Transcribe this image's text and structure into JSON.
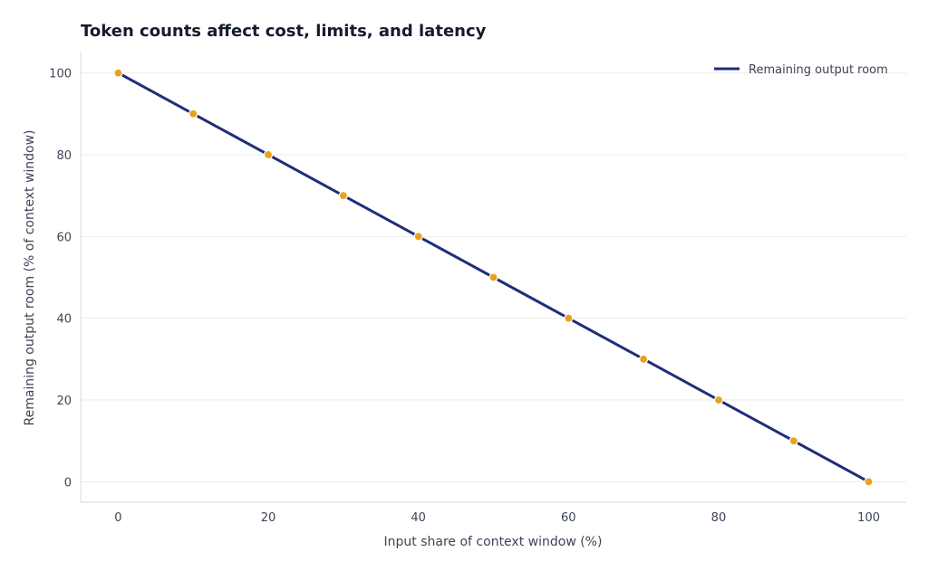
{
  "chart_data": {
    "type": "line",
    "title": "Token counts affect cost, limits, and latency",
    "xlabel": "Input share of context window (%)",
    "ylabel": "Remaining output room (% of context window)",
    "xlim": [
      -5,
      105
    ],
    "ylim": [
      -5,
      105
    ],
    "xticks": [
      0,
      20,
      40,
      60,
      80,
      100
    ],
    "yticks": [
      0,
      20,
      40,
      60,
      80,
      100
    ],
    "grid": "horizontal",
    "legend_position": "top-right",
    "series": [
      {
        "name": "Remaining output room",
        "line_color": "#1f2d7a",
        "marker_color": "#e8a21e",
        "x": [
          0,
          10,
          20,
          30,
          40,
          50,
          60,
          70,
          80,
          90,
          100
        ],
        "y": [
          100,
          90,
          80,
          70,
          60,
          50,
          40,
          30,
          20,
          10,
          0
        ]
      }
    ]
  },
  "colors": {
    "grid": "#ebebeb",
    "axis": "#d9d9d9",
    "text": "#3c4456",
    "title": "#141b2d"
  }
}
